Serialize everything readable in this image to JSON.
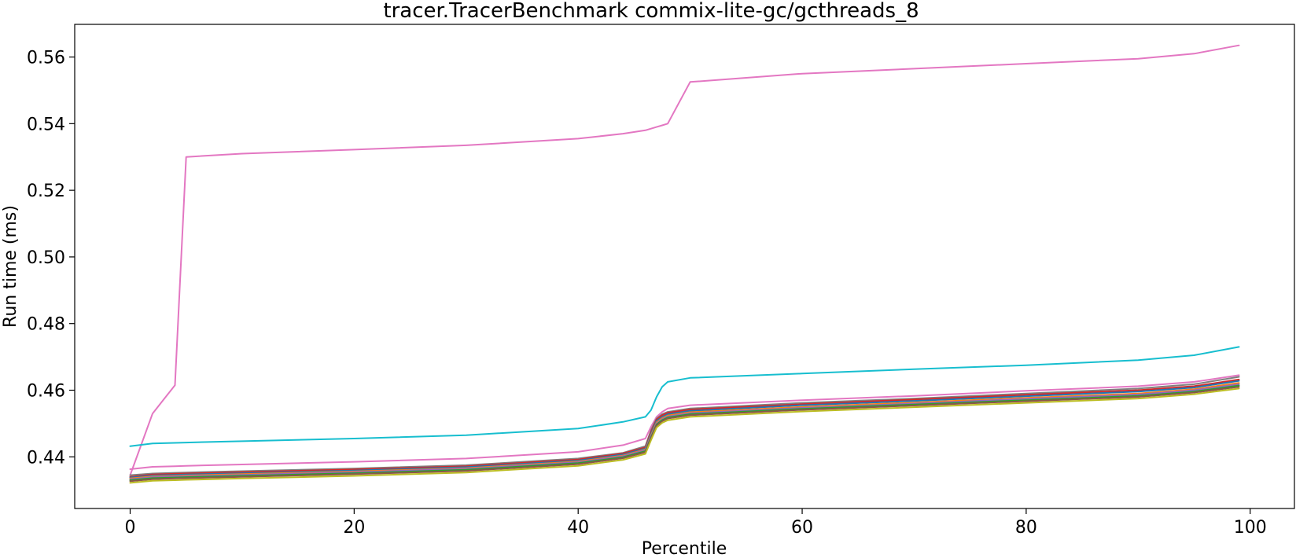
{
  "chart_data": {
    "type": "line",
    "title": "tracer.TracerBenchmark commix-lite-gc/gcthreads_8",
    "xlabel": "Percentile",
    "ylabel": "Run time (ms)",
    "xlim": [
      -4.95,
      103.95
    ],
    "ylim": [
      0.4245,
      0.5698
    ],
    "xticks": [
      0,
      20,
      40,
      60,
      80,
      100
    ],
    "yticks": [
      0.44,
      0.46,
      0.48,
      0.5,
      0.52,
      0.54,
      0.56
    ],
    "xtick_labels": [
      "0",
      "20",
      "40",
      "60",
      "80",
      "100"
    ],
    "ytick_labels": [
      "0.44",
      "0.46",
      "0.48",
      "0.50",
      "0.52",
      "0.54",
      "0.56"
    ],
    "grid": false,
    "legend": "none",
    "x": [
      0,
      2,
      4,
      5,
      10,
      20,
      30,
      40,
      44,
      46,
      46.5,
      47,
      47.5,
      48,
      50,
      60,
      70,
      80,
      90,
      95,
      99
    ],
    "series": [
      {
        "color": "#e377c2",
        "values": [
          0.4345,
          0.453,
          0.4615,
          0.53,
          0.531,
          0.5322,
          0.5335,
          0.5355,
          0.537,
          0.538,
          0.5385,
          0.539,
          0.5395,
          0.54,
          0.5525,
          0.555,
          0.5565,
          0.558,
          0.5595,
          0.561,
          0.5635
        ]
      },
      {
        "color": "#17becf",
        "values": [
          0.4432,
          0.444,
          0.4442,
          0.4443,
          0.4447,
          0.4455,
          0.4465,
          0.4485,
          0.4505,
          0.452,
          0.454,
          0.458,
          0.461,
          0.4625,
          0.4637,
          0.465,
          0.4663,
          0.4675,
          0.469,
          0.4705,
          0.473
        ]
      },
      {
        "color": "#e377c2",
        "values": [
          0.4363,
          0.437,
          0.4372,
          0.4373,
          0.4377,
          0.4385,
          0.4395,
          0.4415,
          0.4435,
          0.4455,
          0.449,
          0.452,
          0.4535,
          0.4545,
          0.4555,
          0.457,
          0.4583,
          0.4598,
          0.4612,
          0.4625,
          0.4645
        ]
      },
      {
        "color": "#7f7f7f",
        "values": [
          0.4345,
          0.435,
          0.4352,
          0.4353,
          0.4357,
          0.4365,
          0.4375,
          0.4395,
          0.4412,
          0.4432,
          0.448,
          0.4515,
          0.4528,
          0.4535,
          0.4545,
          0.4562,
          0.4575,
          0.459,
          0.4605,
          0.4618,
          0.464
        ]
      },
      {
        "color": "#d62728",
        "values": [
          0.434,
          0.4347,
          0.4349,
          0.435,
          0.4354,
          0.4362,
          0.4372,
          0.4392,
          0.441,
          0.4428,
          0.4475,
          0.4512,
          0.4525,
          0.4532,
          0.4542,
          0.4558,
          0.4572,
          0.4586,
          0.46,
          0.4612,
          0.4632
        ]
      },
      {
        "color": "#1f77b4",
        "values": [
          0.4338,
          0.4344,
          0.4346,
          0.4347,
          0.4351,
          0.4359,
          0.4369,
          0.4389,
          0.4407,
          0.4425,
          0.447,
          0.4508,
          0.452,
          0.4528,
          0.4538,
          0.4555,
          0.4568,
          0.4582,
          0.4596,
          0.4608,
          0.4628
        ]
      },
      {
        "color": "#ff7f0e",
        "values": [
          0.4335,
          0.4341,
          0.4343,
          0.4344,
          0.4348,
          0.4356,
          0.4366,
          0.4386,
          0.4404,
          0.4422,
          0.4465,
          0.4503,
          0.4516,
          0.4524,
          0.4534,
          0.455,
          0.4563,
          0.4577,
          0.459,
          0.4603,
          0.4622
        ]
      },
      {
        "color": "#9467bd",
        "values": [
          0.4333,
          0.4339,
          0.4341,
          0.4342,
          0.4346,
          0.4354,
          0.4364,
          0.4384,
          0.4402,
          0.442,
          0.4462,
          0.45,
          0.4513,
          0.4521,
          0.4531,
          0.4547,
          0.456,
          0.4574,
          0.4587,
          0.46,
          0.4618
        ]
      },
      {
        "color": "#2ca02c",
        "values": [
          0.433,
          0.4336,
          0.4338,
          0.4339,
          0.4343,
          0.4351,
          0.4361,
          0.4381,
          0.4399,
          0.4417,
          0.4458,
          0.4497,
          0.451,
          0.4518,
          0.4528,
          0.4544,
          0.4557,
          0.457,
          0.4583,
          0.4596,
          0.4614
        ]
      },
      {
        "color": "#8c564b",
        "values": [
          0.4327,
          0.4333,
          0.4335,
          0.4336,
          0.434,
          0.4348,
          0.4358,
          0.4378,
          0.4396,
          0.4414,
          0.4455,
          0.4494,
          0.4507,
          0.4515,
          0.4525,
          0.4541,
          0.4554,
          0.4567,
          0.458,
          0.4593,
          0.461
        ]
      },
      {
        "color": "#bcbd22",
        "values": [
          0.4322,
          0.4328,
          0.433,
          0.4331,
          0.4335,
          0.4343,
          0.4353,
          0.4373,
          0.4391,
          0.4409,
          0.445,
          0.4488,
          0.4502,
          0.451,
          0.452,
          0.4536,
          0.4549,
          0.4562,
          0.4575,
          0.4588,
          0.4605
        ]
      }
    ]
  }
}
